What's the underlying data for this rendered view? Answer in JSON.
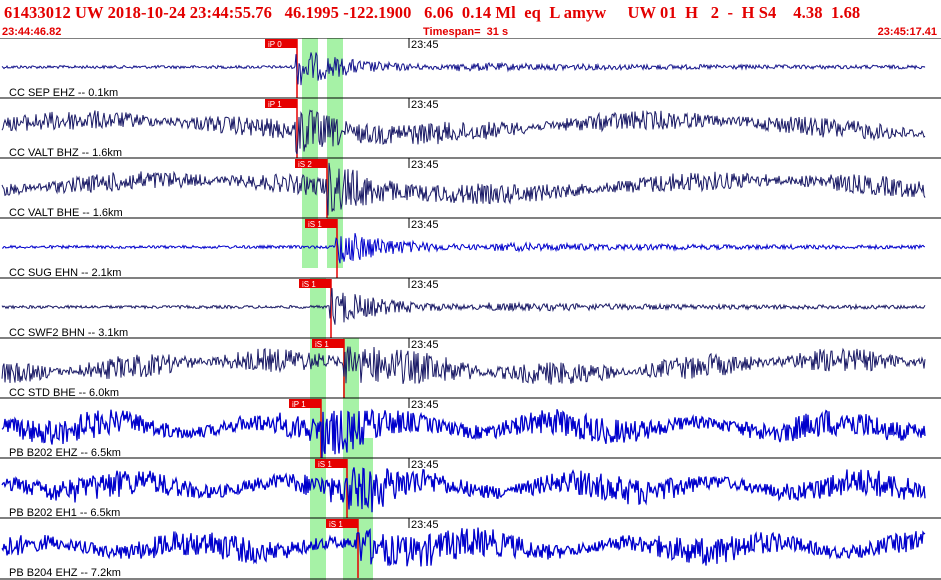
{
  "header": {
    "title": "61433012 UW 2018-10-24 23:44:55.76   46.1995 -122.1900   6.06  0.14 Ml  eq  L amyw     UW 01  H   2  -  H S4    4.38  1.68",
    "start_time": "23:44:46.82",
    "timespan": "Timespan=  31 s",
    "end_time": "23:45:17.41"
  },
  "colors": {
    "header_text": "#e30000",
    "pick_red": "#e60000",
    "window_green": "#a6f2a6",
    "trace_blue": "#0000cc",
    "trace_navy": "#1a1a66"
  },
  "tick_label": "23:45",
  "traces": [
    {
      "label": "CC SEP EHZ -- 0.1km",
      "color": "navy-blue",
      "style": "quiet",
      "picks": [
        {
          "label": "iP 0",
          "at": 0.305
        }
      ]
    },
    {
      "label": "CC VALT BHZ -- 1.6km",
      "color": "navy",
      "style": "noisy",
      "picks": [
        {
          "label": "iP 1",
          "at": 0.305
        }
      ]
    },
    {
      "label": "CC VALT BHE -- 1.6km",
      "color": "navy",
      "style": "noisy",
      "picks": [
        {
          "label": "iS 2",
          "at": 0.337
        }
      ]
    },
    {
      "label": "CC SUG EHN -- 2.1km",
      "color": "blue",
      "style": "quiet",
      "picks": [
        {
          "label": "iS 1",
          "at": 0.347
        }
      ]
    },
    {
      "label": "CC SWF2 BHN -- 3.1km",
      "color": "navy",
      "style": "quiet",
      "picks": [
        {
          "label": "iS 1",
          "at": 0.341
        }
      ]
    },
    {
      "label": "CC STD BHE -- 6.0km",
      "color": "navy",
      "style": "swell",
      "picks": [
        {
          "label": "iS 1",
          "at": 0.355
        }
      ]
    },
    {
      "label": "PB B202 EHZ -- 6.5km",
      "color": "blue",
      "style": "heavy",
      "picks": [
        {
          "label": "iP 1",
          "at": 0.33
        }
      ]
    },
    {
      "label": "PB B202 EH1 -- 6.5km",
      "color": "blue",
      "style": "heavy",
      "picks": [
        {
          "label": "iS 1",
          "at": 0.358
        }
      ]
    },
    {
      "label": "PB B204 EHZ -- 7.2km",
      "color": "blue",
      "style": "heavy",
      "picks": [
        {
          "label": "iS 1",
          "at": 0.37
        }
      ]
    }
  ]
}
